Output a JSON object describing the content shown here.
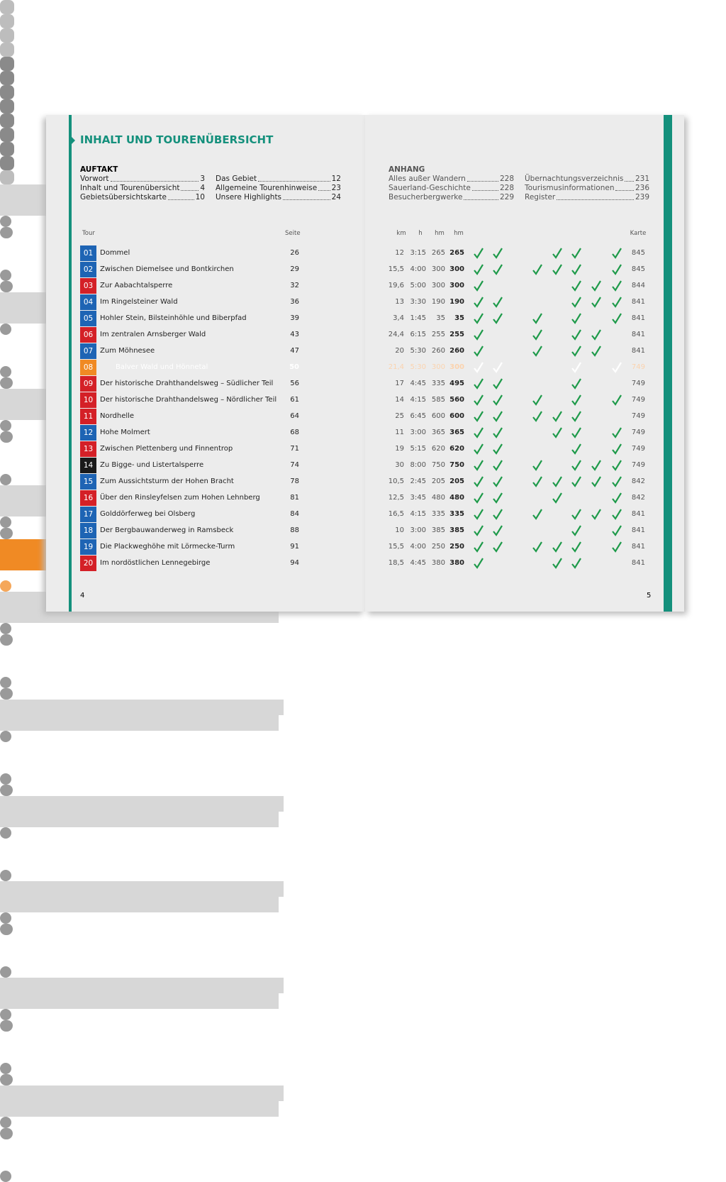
{
  "left_page": {
    "title": "INHALT UND TOURENÜBERSICHT",
    "page_number": "4",
    "toc": {
      "heading": "AUFTAKT",
      "entries": [
        {
          "title": "Vorwort",
          "page": "3"
        },
        {
          "title": "Inhalt und Tourenübersicht",
          "page": "4"
        },
        {
          "title": "Gebietsübersichtskarte",
          "page": "10"
        },
        {
          "title": "Das Gebiet",
          "page": "12"
        },
        {
          "title": "Allgemeine Tourenhinweise",
          "page": "23"
        },
        {
          "title": "Unsere Highlights",
          "page": "24"
        }
      ]
    }
  },
  "right_page": {
    "page_number": "5",
    "toc": {
      "heading": "ANHANG",
      "entries": [
        {
          "title": "Alles außer Wandern",
          "page": "228"
        },
        {
          "title": "Sauerland-Geschichte",
          "page": "228"
        },
        {
          "title": "Besucherbergwerke",
          "page": "229"
        },
        {
          "title": "Übernachtungsverzeichnis",
          "page": "231"
        },
        {
          "title": "Tourismusinformationen",
          "page": "236"
        },
        {
          "title": "Register",
          "page": "239"
        }
      ]
    }
  },
  "table": {
    "headers": {
      "tour": "Tour",
      "page": "Seite",
      "km": "km",
      "h": "h",
      "ascent": "hm",
      "descent": "hm",
      "map": "Karte"
    },
    "rows": [
      {
        "number": "01",
        "color": "#1e64b4",
        "name": "Dommel",
        "page": "26",
        "kids": true,
        "km": "12",
        "h": "3:15",
        "ascent": "265",
        "descent": "265",
        "features": [
          true,
          true,
          false,
          false,
          true,
          true,
          false,
          true
        ],
        "map": "845"
      },
      {
        "number": "02",
        "color": "#1e64b4",
        "name": "Zwischen Diemelsee und Bontkirchen",
        "page": "29",
        "kids": true,
        "km": "15,5",
        "h": "4:00",
        "ascent": "300",
        "descent": "300",
        "features": [
          true,
          true,
          false,
          true,
          true,
          true,
          false,
          true
        ],
        "map": "845"
      },
      {
        "number": "03",
        "color": "#d42027",
        "name": "Zur Aabachtalsperre",
        "page": "32",
        "kids": false,
        "km": "19,6",
        "h": "5:00",
        "ascent": "300",
        "descent": "300",
        "features": [
          true,
          false,
          false,
          false,
          false,
          true,
          true,
          true
        ],
        "map": "844"
      },
      {
        "number": "04",
        "color": "#1e64b4",
        "name": "Im Ringelsteiner Wald",
        "page": "36",
        "kids": true,
        "km": "13",
        "h": "3:30",
        "ascent": "190",
        "descent": "190",
        "features": [
          true,
          true,
          false,
          false,
          false,
          true,
          true,
          true
        ],
        "map": "841"
      },
      {
        "number": "05",
        "color": "#1e64b4",
        "name": "Hohler Stein, Bilsteinhöhle und Biberpfad",
        "page": "39",
        "kids": true,
        "km": "3,4",
        "h": "1:45",
        "ascent": "35",
        "descent": "35",
        "features": [
          true,
          true,
          false,
          true,
          false,
          true,
          false,
          true
        ],
        "map": "841"
      },
      {
        "number": "06",
        "color": "#d42027",
        "name": "Im zentralen Arnsberger Wald",
        "page": "43",
        "kids": false,
        "km": "24,4",
        "h": "6:15",
        "ascent": "255",
        "descent": "255",
        "features": [
          true,
          false,
          false,
          true,
          false,
          true,
          true,
          false
        ],
        "map": "841"
      },
      {
        "number": "07",
        "color": "#1e64b4",
        "name": "Zum Möhnesee",
        "page": "47",
        "kids": true,
        "km": "20",
        "h": "5:30",
        "ascent": "260",
        "descent": "260",
        "features": [
          true,
          false,
          false,
          true,
          false,
          true,
          true,
          false
        ],
        "map": "841"
      },
      {
        "number": "08",
        "color": "#f08a24",
        "highlight": true,
        "name": "Balver Wald und Hönnetal",
        "page": "50",
        "kids": false,
        "km": "21,4",
        "h": "5:30",
        "ascent": "300",
        "descent": "300",
        "features": [
          true,
          true,
          false,
          false,
          false,
          true,
          false,
          true
        ],
        "map": "749"
      },
      {
        "number": "09",
        "color": "#d42027",
        "name": "Der historische Drahthandelsweg – Südlicher Teil",
        "page": "56",
        "kids": true,
        "km": "17",
        "h": "4:45",
        "ascent": "335",
        "descent": "495",
        "features": [
          true,
          true,
          false,
          false,
          false,
          true,
          false,
          false
        ],
        "map": "749"
      },
      {
        "number": "10",
        "color": "#d42027",
        "name": "Der historische Drahthandelsweg – Nördlicher Teil",
        "page": "61",
        "kids": true,
        "km": "14",
        "h": "4:15",
        "ascent": "585",
        "descent": "560",
        "features": [
          true,
          true,
          false,
          true,
          false,
          true,
          false,
          true
        ],
        "map": "749"
      },
      {
        "number": "11",
        "color": "#d42027",
        "name": "Nordhelle",
        "page": "64",
        "kids": false,
        "km": "25",
        "h": "6:45",
        "ascent": "600",
        "descent": "600",
        "features": [
          true,
          true,
          false,
          true,
          true,
          true,
          false,
          false
        ],
        "map": "749"
      },
      {
        "number": "12",
        "color": "#1e64b4",
        "name": "Hohe Molmert",
        "page": "68",
        "kids": true,
        "km": "11",
        "h": "3:00",
        "ascent": "365",
        "descent": "365",
        "features": [
          true,
          true,
          false,
          false,
          true,
          true,
          false,
          true
        ],
        "map": "749"
      },
      {
        "number": "13",
        "color": "#d42027",
        "name": "Zwischen Plettenberg und Finnentrop",
        "page": "71",
        "kids": false,
        "km": "19",
        "h": "5:15",
        "ascent": "620",
        "descent": "620",
        "features": [
          true,
          true,
          false,
          false,
          false,
          true,
          false,
          true
        ],
        "map": "749"
      },
      {
        "number": "14",
        "color": "#1a1a1a",
        "name": "Zu Bigge- und Listertalsperre",
        "page": "74",
        "kids": false,
        "km": "30",
        "h": "8:00",
        "ascent": "750",
        "descent": "750",
        "features": [
          true,
          true,
          false,
          true,
          false,
          true,
          true,
          true
        ],
        "map": "749"
      },
      {
        "number": "15",
        "color": "#1e64b4",
        "name": "Zum Aussichtsturm der Hohen Bracht",
        "page": "78",
        "kids": true,
        "km": "10,5",
        "h": "2:45",
        "ascent": "205",
        "descent": "205",
        "features": [
          true,
          true,
          false,
          true,
          true,
          true,
          true,
          true
        ],
        "map": "842"
      },
      {
        "number": "16",
        "color": "#d42027",
        "name": "Über den Rinsleyfelsen zum Hohen Lehnberg",
        "page": "81",
        "kids": false,
        "km": "12,5",
        "h": "3:45",
        "ascent": "480",
        "descent": "480",
        "features": [
          true,
          true,
          false,
          false,
          true,
          false,
          false,
          true
        ],
        "map": "842"
      },
      {
        "number": "17",
        "color": "#1e64b4",
        "name": "Golddörferweg bei Olsberg",
        "page": "84",
        "kids": true,
        "km": "16,5",
        "h": "4:15",
        "ascent": "335",
        "descent": "335",
        "features": [
          true,
          true,
          false,
          true,
          false,
          true,
          true,
          true
        ],
        "map": "841"
      },
      {
        "number": "18",
        "color": "#1e64b4",
        "name": "Der Bergbauwanderweg in Ramsbeck",
        "page": "88",
        "kids": true,
        "km": "10",
        "h": "3:00",
        "ascent": "385",
        "descent": "385",
        "features": [
          true,
          true,
          false,
          false,
          false,
          true,
          false,
          true
        ],
        "map": "841"
      },
      {
        "number": "19",
        "color": "#1e64b4",
        "name": "Die Plackweghöhe mit Lörmecke-Turm",
        "page": "91",
        "kids": true,
        "km": "15,5",
        "h": "4:00",
        "ascent": "250",
        "descent": "250",
        "features": [
          true,
          true,
          false,
          true,
          true,
          true,
          false,
          true
        ],
        "map": "841"
      },
      {
        "number": "20",
        "color": "#d42027",
        "name": "Im nordöstlichen Lennegebirge",
        "page": "94",
        "kids": false,
        "km": "18,5",
        "h": "4:45",
        "ascent": "380",
        "descent": "380",
        "features": [
          true,
          false,
          false,
          false,
          true,
          true,
          false,
          false
        ],
        "map": "841"
      }
    ]
  }
}
